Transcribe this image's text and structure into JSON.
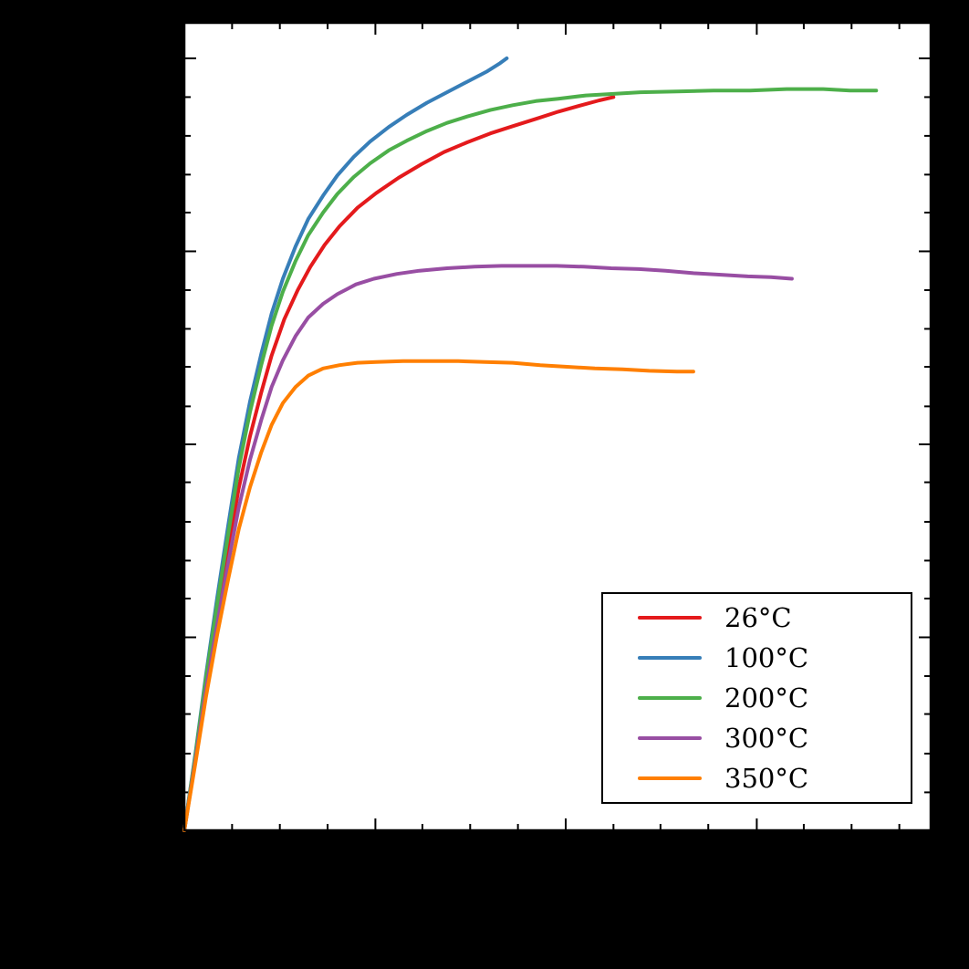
{
  "figure": {
    "background_color": "#000000",
    "plot_background_color": "#ffffff",
    "frame_color": "#000000"
  },
  "chart_data": {
    "type": "line",
    "title": "",
    "xlabel": "",
    "ylabel": "",
    "axis_tick_labels_visible": false,
    "grid": false,
    "legend_position": "lower right",
    "xlim_frac": [
      0,
      1
    ],
    "ylim_frac": [
      0,
      1
    ],
    "plot_bg": "#ffffff",
    "frame_color": "#000000",
    "ticks": {
      "x_major": [
        0,
        0.256,
        0.511,
        0.767
      ],
      "x_minor": [
        0.064,
        0.128,
        0.192,
        0.319,
        0.383,
        0.447,
        0.575,
        0.638,
        0.702,
        0.83,
        0.894,
        0.958
      ],
      "y_major": [
        0,
        0.239,
        0.478,
        0.717,
        0.956
      ],
      "y_minor": [
        0.047,
        0.095,
        0.144,
        0.191,
        0.287,
        0.334,
        0.382,
        0.431,
        0.525,
        0.574,
        0.621,
        0.669,
        0.765,
        0.812,
        0.86,
        0.908
      ]
    },
    "series": [
      {
        "name": "26°C",
        "color": "#e41a1c",
        "points": [
          [
            0,
            0
          ],
          [
            0.015,
            0.09
          ],
          [
            0.029,
            0.181
          ],
          [
            0.044,
            0.269
          ],
          [
            0.059,
            0.35
          ],
          [
            0.073,
            0.424
          ],
          [
            0.088,
            0.488
          ],
          [
            0.103,
            0.542
          ],
          [
            0.117,
            0.588
          ],
          [
            0.134,
            0.633
          ],
          [
            0.152,
            0.669
          ],
          [
            0.169,
            0.698
          ],
          [
            0.188,
            0.725
          ],
          [
            0.208,
            0.748
          ],
          [
            0.232,
            0.771
          ],
          [
            0.257,
            0.789
          ],
          [
            0.287,
            0.808
          ],
          [
            0.318,
            0.825
          ],
          [
            0.348,
            0.84
          ],
          [
            0.379,
            0.852
          ],
          [
            0.41,
            0.863
          ],
          [
            0.44,
            0.872
          ],
          [
            0.471,
            0.881
          ],
          [
            0.501,
            0.89
          ],
          [
            0.532,
            0.898
          ],
          [
            0.556,
            0.904
          ],
          [
            0.575,
            0.908
          ]
        ]
      },
      {
        "name": "100°C",
        "color": "#377eb8",
        "points": [
          [
            0,
            0
          ],
          [
            0.015,
            0.096
          ],
          [
            0.029,
            0.192
          ],
          [
            0.044,
            0.288
          ],
          [
            0.059,
            0.379
          ],
          [
            0.073,
            0.461
          ],
          [
            0.088,
            0.531
          ],
          [
            0.103,
            0.59
          ],
          [
            0.117,
            0.64
          ],
          [
            0.132,
            0.683
          ],
          [
            0.149,
            0.723
          ],
          [
            0.166,
            0.757
          ],
          [
            0.186,
            0.786
          ],
          [
            0.205,
            0.811
          ],
          [
            0.227,
            0.834
          ],
          [
            0.249,
            0.853
          ],
          [
            0.274,
            0.871
          ],
          [
            0.298,
            0.886
          ],
          [
            0.325,
            0.901
          ],
          [
            0.352,
            0.914
          ],
          [
            0.379,
            0.927
          ],
          [
            0.406,
            0.94
          ],
          [
            0.423,
            0.95
          ],
          [
            0.432,
            0.956
          ]
        ]
      },
      {
        "name": "200°C",
        "color": "#4daf4a",
        "points": [
          [
            0,
            0
          ],
          [
            0.015,
            0.094
          ],
          [
            0.029,
            0.188
          ],
          [
            0.044,
            0.28
          ],
          [
            0.059,
            0.368
          ],
          [
            0.073,
            0.449
          ],
          [
            0.088,
            0.518
          ],
          [
            0.103,
            0.576
          ],
          [
            0.117,
            0.625
          ],
          [
            0.132,
            0.667
          ],
          [
            0.149,
            0.705
          ],
          [
            0.166,
            0.737
          ],
          [
            0.186,
            0.765
          ],
          [
            0.205,
            0.788
          ],
          [
            0.227,
            0.809
          ],
          [
            0.249,
            0.826
          ],
          [
            0.274,
            0.842
          ],
          [
            0.298,
            0.854
          ],
          [
            0.325,
            0.866
          ],
          [
            0.352,
            0.876
          ],
          [
            0.379,
            0.884
          ],
          [
            0.41,
            0.892
          ],
          [
            0.44,
            0.898
          ],
          [
            0.471,
            0.903
          ],
          [
            0.501,
            0.906
          ],
          [
            0.538,
            0.91
          ],
          [
            0.575,
            0.912
          ],
          [
            0.611,
            0.914
          ],
          [
            0.66,
            0.915
          ],
          [
            0.709,
            0.916
          ],
          [
            0.758,
            0.916
          ],
          [
            0.807,
            0.918
          ],
          [
            0.856,
            0.918
          ],
          [
            0.892,
            0.916
          ],
          [
            0.927,
            0.916
          ]
        ]
      },
      {
        "name": "300°C",
        "color": "#984ea3",
        "points": [
          [
            0,
            0
          ],
          [
            0.015,
            0.088
          ],
          [
            0.029,
            0.174
          ],
          [
            0.044,
            0.255
          ],
          [
            0.059,
            0.332
          ],
          [
            0.073,
            0.4
          ],
          [
            0.088,
            0.459
          ],
          [
            0.103,
            0.508
          ],
          [
            0.117,
            0.549
          ],
          [
            0.132,
            0.582
          ],
          [
            0.149,
            0.612
          ],
          [
            0.166,
            0.635
          ],
          [
            0.186,
            0.652
          ],
          [
            0.205,
            0.664
          ],
          [
            0.23,
            0.676
          ],
          [
            0.254,
            0.683
          ],
          [
            0.285,
            0.689
          ],
          [
            0.315,
            0.693
          ],
          [
            0.352,
            0.696
          ],
          [
            0.389,
            0.698
          ],
          [
            0.425,
            0.699
          ],
          [
            0.462,
            0.699
          ],
          [
            0.499,
            0.699
          ],
          [
            0.535,
            0.698
          ],
          [
            0.572,
            0.696
          ],
          [
            0.609,
            0.695
          ],
          [
            0.645,
            0.693
          ],
          [
            0.682,
            0.69
          ],
          [
            0.719,
            0.688
          ],
          [
            0.755,
            0.686
          ],
          [
            0.786,
            0.685
          ],
          [
            0.814,
            0.683
          ]
        ]
      },
      {
        "name": "350°C",
        "color": "#ff7f00",
        "points": [
          [
            0,
            0
          ],
          [
            0.015,
            0.084
          ],
          [
            0.029,
            0.165
          ],
          [
            0.044,
            0.242
          ],
          [
            0.059,
            0.312
          ],
          [
            0.073,
            0.373
          ],
          [
            0.088,
            0.425
          ],
          [
            0.103,
            0.468
          ],
          [
            0.117,
            0.502
          ],
          [
            0.132,
            0.529
          ],
          [
            0.149,
            0.549
          ],
          [
            0.166,
            0.563
          ],
          [
            0.186,
            0.572
          ],
          [
            0.208,
            0.576
          ],
          [
            0.232,
            0.579
          ],
          [
            0.257,
            0.58
          ],
          [
            0.293,
            0.581
          ],
          [
            0.33,
            0.581
          ],
          [
            0.367,
            0.581
          ],
          [
            0.403,
            0.58
          ],
          [
            0.44,
            0.579
          ],
          [
            0.477,
            0.576
          ],
          [
            0.513,
            0.574
          ],
          [
            0.55,
            0.572
          ],
          [
            0.587,
            0.571
          ],
          [
            0.623,
            0.569
          ],
          [
            0.66,
            0.568
          ],
          [
            0.682,
            0.568
          ]
        ]
      }
    ],
    "legend": {
      "labels": [
        "26°C",
        "100°C",
        "200°C",
        "300°C",
        "350°C"
      ]
    }
  }
}
